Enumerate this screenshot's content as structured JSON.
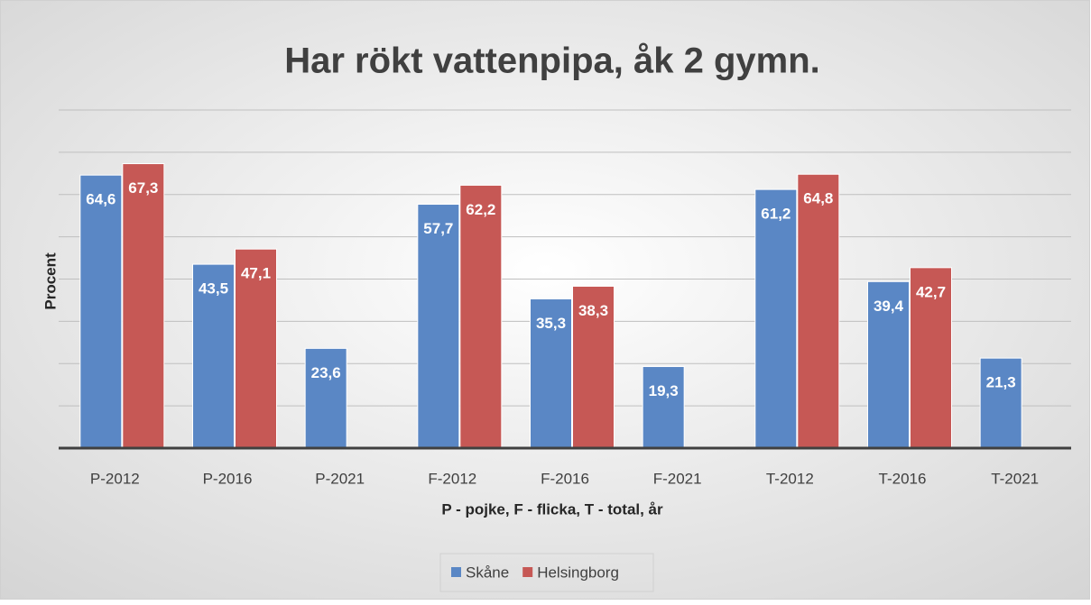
{
  "chart_data": {
    "type": "bar",
    "title": "Har rökt vattenpipa, åk 2 gymn.",
    "x_label": "P - pojke, F - flicka, T - total, år",
    "y_label": "Procent",
    "categories": [
      "P-2012",
      "P-2016",
      "P-2021",
      "F-2012",
      "F-2016",
      "F-2021",
      "T-2012",
      "T-2016",
      "T-2021"
    ],
    "series": [
      {
        "name": "Skåne",
        "color": "#5a87c5",
        "values": [
          64.6,
          43.5,
          23.6,
          57.7,
          35.3,
          19.3,
          61.2,
          39.4,
          21.3
        ],
        "value_labels": [
          "64,6",
          "43,5",
          "23,6",
          "57,7",
          "35,3",
          "19,3",
          "61,2",
          "39,4",
          "21,3"
        ]
      },
      {
        "name": "Helsingborg",
        "color": "#c65855",
        "values": [
          67.3,
          47.1,
          null,
          62.2,
          38.3,
          null,
          64.8,
          42.7,
          null
        ],
        "value_labels": [
          "67,3",
          "47,1",
          null,
          "62,2",
          "38,3",
          null,
          "64,8",
          "42,7",
          null
        ]
      }
    ],
    "ylim": [
      0,
      80
    ],
    "yticks": [
      0,
      10,
      20,
      30,
      40,
      50,
      60,
      70,
      80
    ],
    "grid": true,
    "legend": "bottom"
  }
}
